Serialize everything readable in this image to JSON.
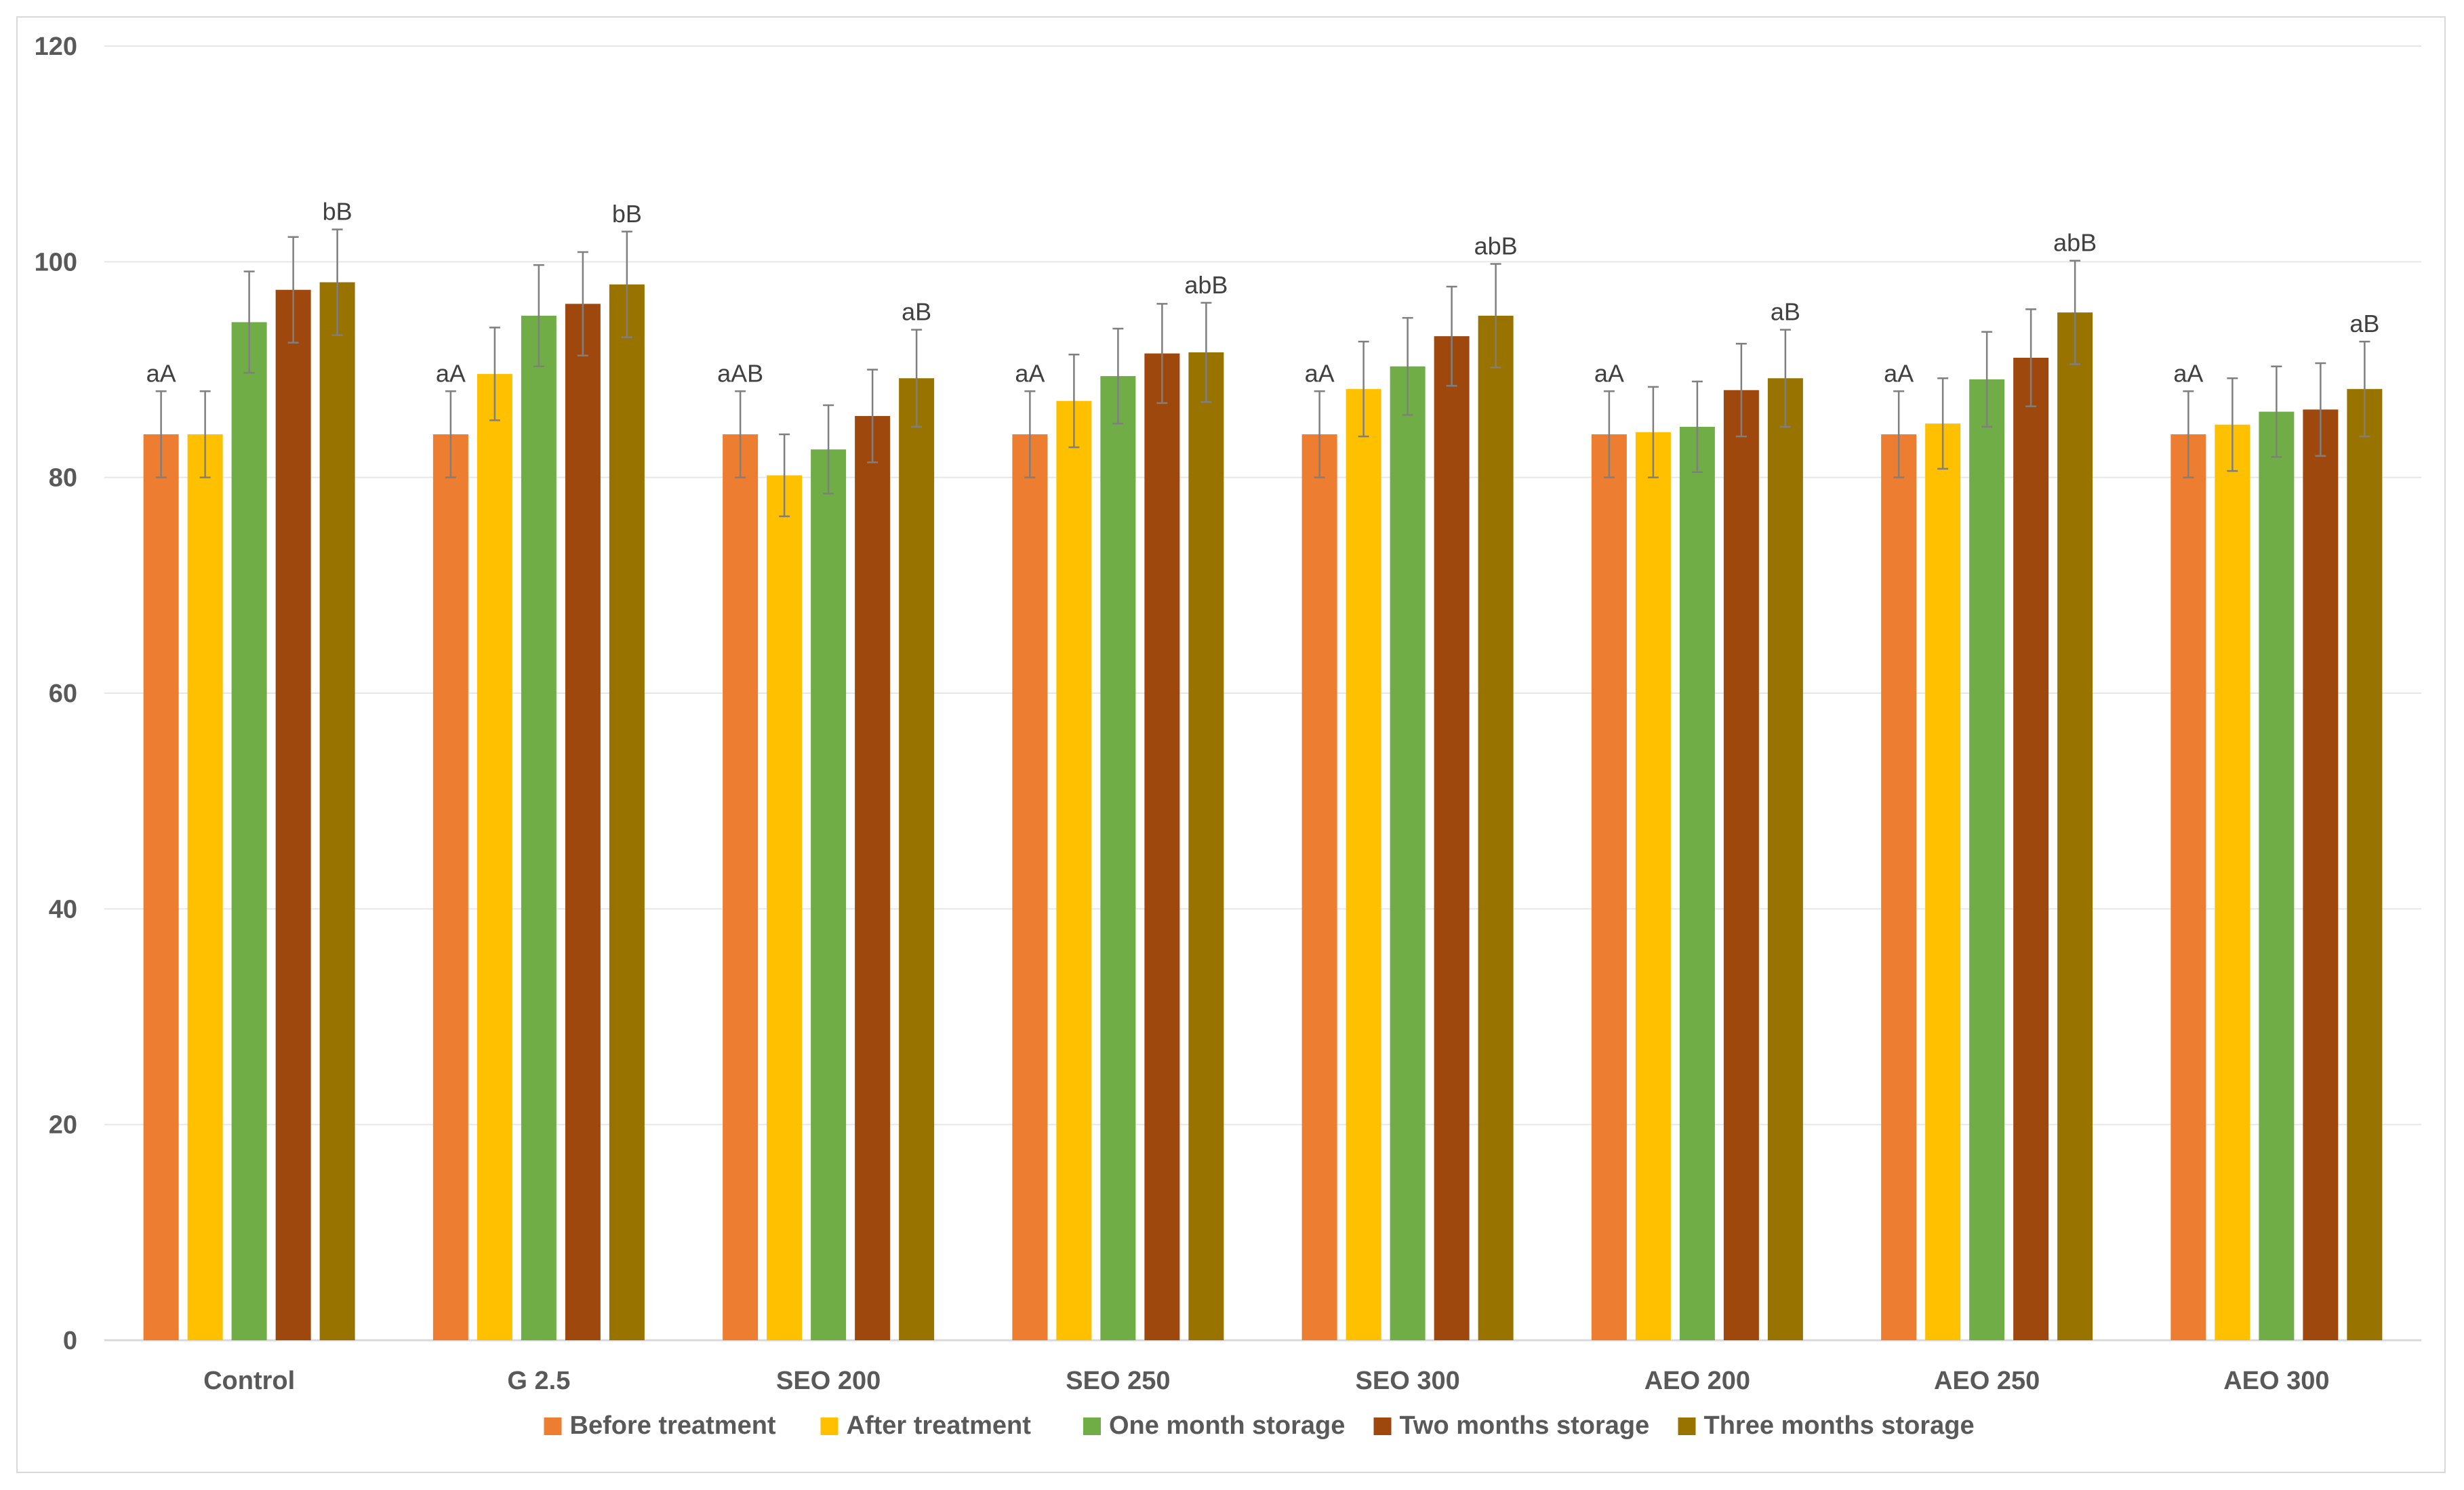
{
  "chart_data": {
    "type": "bar",
    "title": "",
    "xlabel": "",
    "ylabel": "",
    "ylim": [
      0,
      120
    ],
    "yticks": [
      "0",
      "20",
      "40",
      "60",
      "80",
      "100",
      "120"
    ],
    "grid": true,
    "legend_position": "bottom",
    "categories": [
      "Control",
      "G 2.5",
      "SEO 200",
      "SEO 250",
      "SEO 300",
      "AEO 200",
      "AEO 250",
      "AEO 300"
    ],
    "series": [
      {
        "name": "Before treatment",
        "color": "#ED7D31",
        "values": [
          84,
          84,
          84,
          84,
          84,
          84,
          84,
          84
        ],
        "errors": [
          4,
          4,
          4,
          4,
          4,
          4,
          4,
          4
        ]
      },
      {
        "name": "After treatment",
        "color": "#FFC000",
        "values": [
          84,
          89.6,
          80.2,
          87.1,
          88.2,
          84.2,
          85,
          84.9
        ],
        "errors": [
          4,
          4.3,
          3.8,
          4.3,
          4.4,
          4.2,
          4.2,
          4.3
        ]
      },
      {
        "name": "One month storage",
        "color": "#70AD47",
        "values": [
          94.4,
          95,
          82.6,
          89.4,
          90.3,
          84.7,
          89.1,
          86.1
        ],
        "errors": [
          4.7,
          4.7,
          4.1,
          4.4,
          4.5,
          4.2,
          4.4,
          4.2
        ]
      },
      {
        "name": "Two months storage",
        "color": "#9E480E",
        "values": [
          97.4,
          96.1,
          85.7,
          91.5,
          93.1,
          88.1,
          91.1,
          86.3
        ],
        "errors": [
          4.9,
          4.8,
          4.3,
          4.6,
          4.6,
          4.3,
          4.5,
          4.3
        ]
      },
      {
        "name": "Three months storage",
        "color": "#997300",
        "values": [
          98.1,
          97.9,
          89.2,
          91.6,
          95,
          89.2,
          95.3,
          88.2
        ],
        "errors": [
          4.9,
          4.9,
          4.5,
          4.6,
          4.8,
          4.5,
          4.8,
          4.4
        ]
      }
    ],
    "annotations": [
      {
        "category": 0,
        "series": 0,
        "text": "aA"
      },
      {
        "category": 0,
        "series": 4,
        "text": "bB"
      },
      {
        "category": 1,
        "series": 0,
        "text": "aA"
      },
      {
        "category": 1,
        "series": 4,
        "text": "bB"
      },
      {
        "category": 2,
        "series": 0,
        "text": "aAB"
      },
      {
        "category": 2,
        "series": 4,
        "text": "aB"
      },
      {
        "category": 3,
        "series": 0,
        "text": "aA"
      },
      {
        "category": 3,
        "series": 4,
        "text": "abB"
      },
      {
        "category": 4,
        "series": 0,
        "text": "aA"
      },
      {
        "category": 4,
        "series": 4,
        "text": "abB"
      },
      {
        "category": 5,
        "series": 0,
        "text": "aA"
      },
      {
        "category": 5,
        "series": 4,
        "text": "aB"
      },
      {
        "category": 6,
        "series": 0,
        "text": "aA"
      },
      {
        "category": 6,
        "series": 4,
        "text": "abB"
      },
      {
        "category": 7,
        "series": 0,
        "text": "aA"
      },
      {
        "category": 7,
        "series": 4,
        "text": "aB"
      }
    ]
  }
}
